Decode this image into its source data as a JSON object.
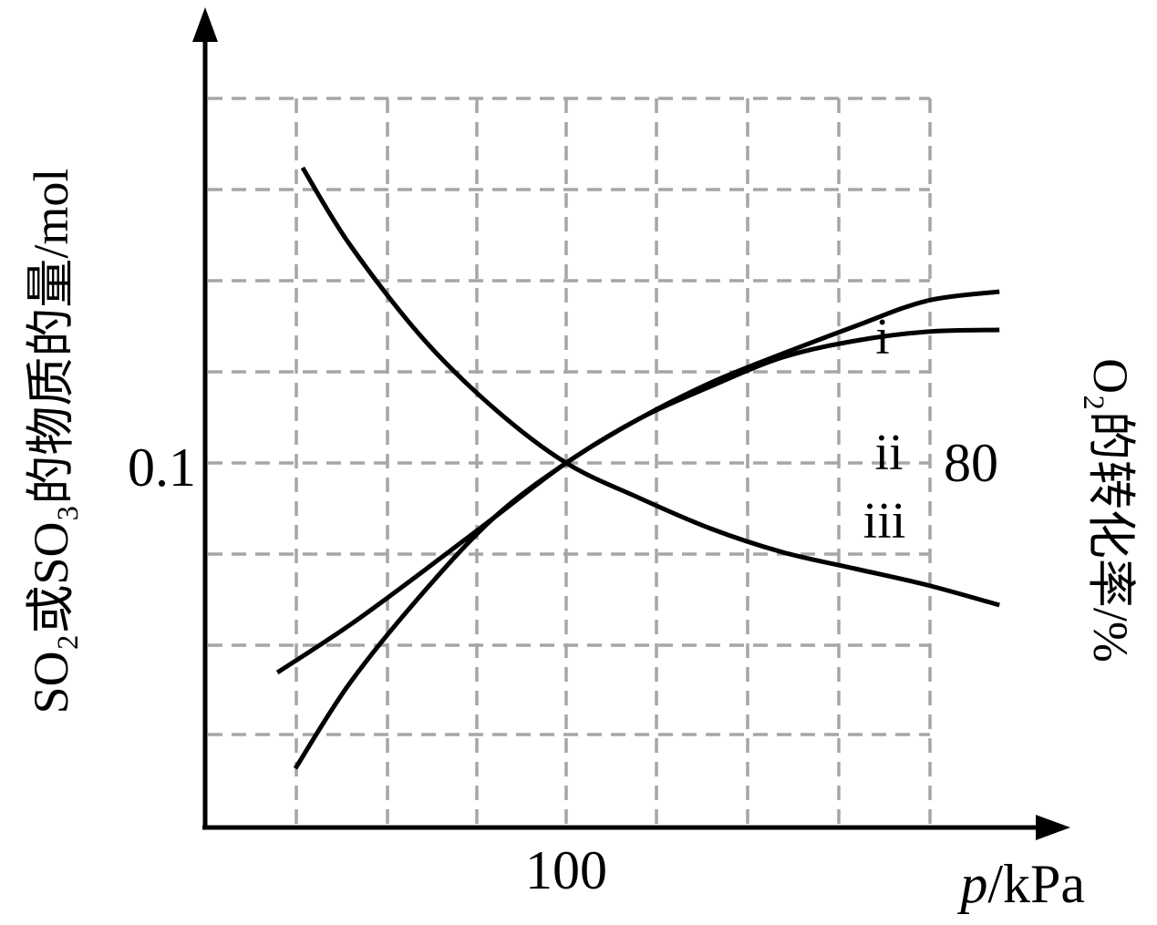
{
  "chart_data": {
    "type": "line",
    "grid": true,
    "xlabel_italic": "p",
    "xlabel_unit": "/kPa",
    "ylabel_left": "SO₂或SO₃的物质的量/mol",
    "ylabel_right": "O₂的转化率/%",
    "x_tick_label": "100",
    "x_tick_value": 100,
    "y_left_tick_label": "0.1",
    "y_left_tick_value": 0.1,
    "y_right_tick_label": "80",
    "y_right_tick_value": 80,
    "series": [
      {
        "name": "i",
        "values": [
          [
            20,
            0.0425
          ],
          [
            40,
            0.0555
          ],
          [
            60,
            0.07
          ],
          [
            80,
            0.085
          ],
          [
            100,
            0.1
          ],
          [
            120,
            0.112
          ],
          [
            140,
            0.122
          ],
          [
            160,
            0.13
          ],
          [
            180,
            0.1375
          ],
          [
            200,
            0.1445
          ],
          [
            220,
            0.147
          ]
        ]
      },
      {
        "name": "ii",
        "values": [
          [
            25,
            0.0162
          ],
          [
            40,
            0.0395
          ],
          [
            60,
            0.064
          ],
          [
            80,
            0.085
          ],
          [
            100,
            0.1
          ],
          [
            120,
            0.112
          ],
          [
            140,
            0.121
          ],
          [
            160,
            0.129
          ],
          [
            180,
            0.1335
          ],
          [
            200,
            0.136
          ],
          [
            220,
            0.1365
          ]
        ]
      },
      {
        "name": "iii",
        "values": [
          [
            27,
            0.181
          ],
          [
            40,
            0.16
          ],
          [
            60,
            0.1345
          ],
          [
            80,
            0.115
          ],
          [
            100,
            0.1
          ],
          [
            120,
            0.0905
          ],
          [
            140,
            0.082
          ],
          [
            160,
            0.0755
          ],
          [
            180,
            0.071
          ],
          [
            200,
            0.0665
          ],
          [
            220,
            0.061
          ]
        ]
      }
    ]
  }
}
